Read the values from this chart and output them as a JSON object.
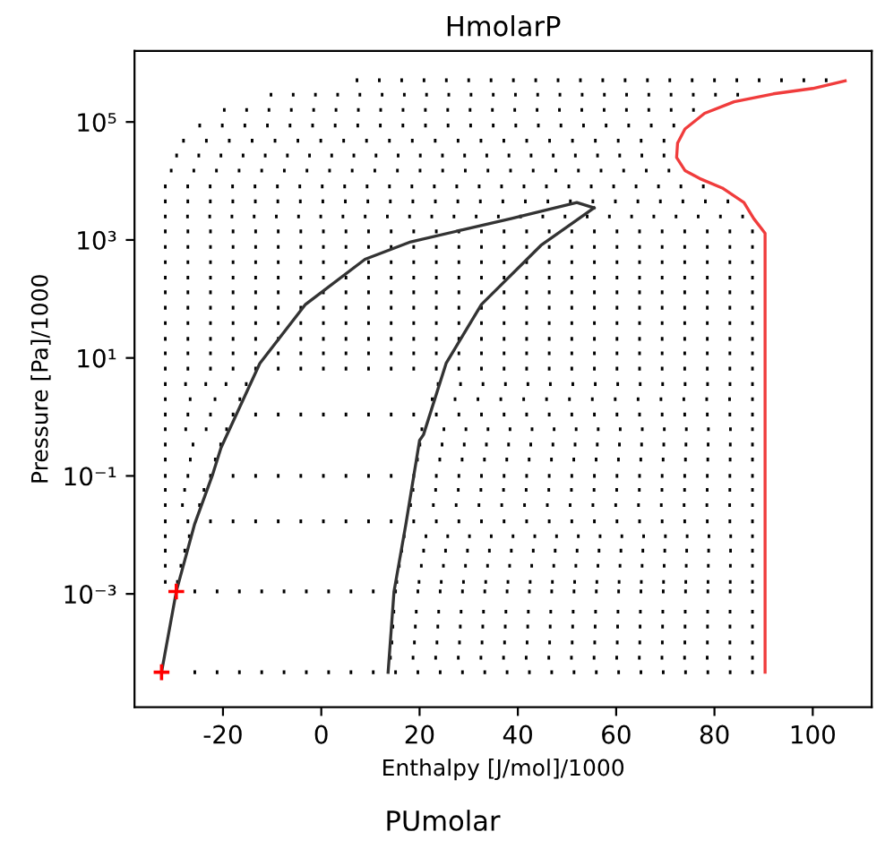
{
  "chart_data": {
    "type": "line",
    "title": "HmolarP",
    "xlabel": "Enthalpy [J/mol]/1000",
    "ylabel": "Pressure [Pa]/1000",
    "annotations": [
      "PUmolar"
    ],
    "log": "y",
    "xlim": [
      -38,
      112
    ],
    "xticks": [
      -20,
      0,
      20,
      40,
      60,
      80,
      100
    ],
    "ylim": [
      1.2e-05,
      1600000.0
    ],
    "yticks": [
      {
        "value": 0.001,
        "label": "10⁻³"
      },
      {
        "value": 0.1,
        "label": "10⁻¹"
      },
      {
        "value": 10,
        "label": "10¹"
      },
      {
        "value": 1000,
        "label": "10³"
      },
      {
        "value": 100000,
        "label": "10⁵"
      }
    ],
    "series": [
      {
        "color": "#000000",
        "line_style": "dotted",
        "x": [
          -26,
          88
        ],
        "values": [
          4.7e-05,
          4.7e-05
        ]
      },
      {
        "color": "#000000",
        "line_style": "dotted",
        "x": [
          13.8,
          88
        ],
        "values": [
          8.3e-05,
          8.3e-05
        ]
      },
      {
        "color": "#000000",
        "line_style": "dotted",
        "x": [
          14.1,
          88
        ],
        "values": [
          0.00015,
          0.00015
        ]
      },
      {
        "color": "#000000",
        "line_style": "dotted",
        "x": [
          14.3,
          88
        ],
        "values": [
          0.00028,
          0.00028
        ]
      },
      {
        "color": "#000000",
        "line_style": "dotted",
        "x": [
          14.5,
          88
        ],
        "values": [
          0.0005,
          0.0005
        ]
      },
      {
        "color": "#000000",
        "line_style": "dotted",
        "x": [
          -26,
          88
        ],
        "values": [
          0.0011,
          0.0011
        ]
      },
      {
        "color": "#000000",
        "line_style": "dotted",
        "x": [
          -32,
          -29
        ],
        "values": [
          0.0016,
          0.0016
        ]
      },
      {
        "color": "#000000",
        "line_style": "dotted",
        "x": [
          15.1,
          88
        ],
        "values": [
          0.0016,
          0.0016
        ]
      },
      {
        "color": "#000000",
        "line_style": "dotted",
        "x": [
          -32,
          -28.3
        ],
        "values": [
          0.003,
          0.003
        ]
      },
      {
        "color": "#000000",
        "line_style": "dotted",
        "x": [
          15.6,
          88
        ],
        "values": [
          0.003,
          0.003
        ]
      },
      {
        "color": "#000000",
        "line_style": "dotted",
        "x": [
          -32,
          -27.5
        ],
        "values": [
          0.0054,
          0.0054
        ]
      },
      {
        "color": "#000000",
        "line_style": "dotted",
        "x": [
          16.1,
          88
        ],
        "values": [
          0.0054,
          0.0054
        ]
      },
      {
        "color": "#000000",
        "line_style": "dotted",
        "x": [
          -32,
          -26.6
        ],
        "values": [
          0.0095,
          0.0095
        ]
      },
      {
        "color": "#000000",
        "line_style": "dotted",
        "x": [
          16.6,
          88
        ],
        "values": [
          0.0095,
          0.0095
        ]
      },
      {
        "color": "#000000",
        "line_style": "dotted",
        "x": [
          -32,
          88
        ],
        "values": [
          0.017,
          0.017
        ]
      },
      {
        "color": "#000000",
        "line_style": "dotted",
        "x": [
          -32,
          -24.5
        ],
        "values": [
          0.032,
          0.032
        ]
      },
      {
        "color": "#000000",
        "line_style": "dotted",
        "x": [
          17.9,
          88
        ],
        "values": [
          0.032,
          0.032
        ]
      },
      {
        "color": "#000000",
        "line_style": "dotted",
        "x": [
          -32,
          -23.6
        ],
        "values": [
          0.058,
          0.058
        ]
      },
      {
        "color": "#000000",
        "line_style": "dotted",
        "x": [
          18.4,
          88
        ],
        "values": [
          0.058,
          0.058
        ]
      },
      {
        "color": "#000000",
        "line_style": "dotted",
        "x": [
          -32,
          88
        ],
        "values": [
          0.1,
          0.1
        ]
      },
      {
        "color": "#000000",
        "line_style": "dotted",
        "x": [
          -32,
          -21.3
        ],
        "values": [
          0.19,
          0.19
        ]
      },
      {
        "color": "#000000",
        "line_style": "dotted",
        "x": [
          19.3,
          88
        ],
        "values": [
          0.19,
          0.19
        ]
      },
      {
        "color": "#000000",
        "line_style": "dotted",
        "x": [
          -32,
          -20.2
        ],
        "values": [
          0.34,
          0.34
        ]
      },
      {
        "color": "#000000",
        "line_style": "dotted",
        "x": [
          19.8,
          88
        ],
        "values": [
          0.34,
          0.34
        ]
      },
      {
        "color": "#000000",
        "line_style": "dotted",
        "x": [
          -32,
          -19
        ],
        "values": [
          0.62,
          0.62
        ]
      },
      {
        "color": "#000000",
        "line_style": "dotted",
        "x": [
          20.2,
          88
        ],
        "values": [
          0.62,
          0.62
        ]
      },
      {
        "color": "#000000",
        "line_style": "dotted",
        "x": [
          -32,
          88
        ],
        "values": [
          1.1,
          1.1
        ]
      },
      {
        "color": "#000000",
        "line_style": "dotted",
        "x": [
          -32,
          -16.3
        ],
        "values": [
          2.0,
          2.0
        ]
      },
      {
        "color": "#000000",
        "line_style": "dotted",
        "x": [
          22.3,
          88
        ],
        "values": [
          2.0,
          2.0
        ]
      },
      {
        "color": "#000000",
        "line_style": "dotted",
        "x": [
          -32,
          -15
        ],
        "values": [
          3.6,
          3.6
        ]
      },
      {
        "color": "#000000",
        "line_style": "dotted",
        "x": [
          23.5,
          88
        ],
        "values": [
          3.6,
          3.6
        ]
      },
      {
        "color": "#000000",
        "line_style": "dotted",
        "x": [
          -32,
          88
        ],
        "values": [
          6.6,
          6.6
        ]
      },
      {
        "color": "#000000",
        "line_style": "dotted",
        "x": [
          -32,
          88
        ],
        "values": [
          12,
          12
        ]
      },
      {
        "color": "#000000",
        "line_style": "dotted",
        "x": [
          -32,
          88
        ],
        "values": [
          21,
          21
        ]
      },
      {
        "color": "#000000",
        "line_style": "dotted",
        "x": [
          -32,
          88
        ],
        "values": [
          39,
          39
        ]
      },
      {
        "color": "#000000",
        "line_style": "dotted",
        "x": [
          -32,
          88
        ],
        "values": [
          71,
          71
        ]
      },
      {
        "color": "#000000",
        "line_style": "dotted",
        "x": [
          -32,
          88
        ],
        "values": [
          130,
          130
        ]
      },
      {
        "color": "#000000",
        "line_style": "dotted",
        "x": [
          -32,
          88
        ],
        "values": [
          230,
          230
        ]
      },
      {
        "color": "#000000",
        "line_style": "dotted",
        "x": [
          -32,
          88
        ],
        "values": [
          420,
          420
        ]
      },
      {
        "color": "#000000",
        "line_style": "dotted",
        "x": [
          -32,
          88
        ],
        "values": [
          760,
          760
        ]
      },
      {
        "color": "#000000",
        "line_style": "dotted",
        "x": [
          -32,
          88
        ],
        "values": [
          1400,
          1400
        ]
      },
      {
        "color": "#000000",
        "line_style": "dotted",
        "x": [
          -32,
          86
        ],
        "values": [
          2500,
          2500
        ]
      },
      {
        "color": "#000000",
        "line_style": "dotted",
        "x": [
          -32,
          83
        ],
        "values": [
          4500,
          4500
        ]
      },
      {
        "color": "#000000",
        "line_style": "dotted",
        "x": [
          -32,
          78
        ],
        "values": [
          8100,
          8100
        ]
      },
      {
        "color": "#000000",
        "line_style": "dotted",
        "x": [
          -30.8,
          71
        ],
        "values": [
          15000,
          15000
        ]
      },
      {
        "color": "#000000",
        "line_style": "dotted",
        "x": [
          -29.7,
          70
        ],
        "values": [
          27000,
          27000
        ]
      },
      {
        "color": "#000000",
        "line_style": "dotted",
        "x": [
          -28.3,
          70
        ],
        "values": [
          48000,
          48000
        ]
      },
      {
        "color": "#000000",
        "line_style": "dotted",
        "x": [
          -25,
          72
        ],
        "values": [
          87000,
          87000
        ]
      },
      {
        "color": "#000000",
        "line_style": "dotted",
        "x": [
          -20,
          76
        ],
        "values": [
          160000,
          160000
        ]
      },
      {
        "color": "#000000",
        "line_style": "dotted",
        "x": [
          -10.5,
          85
        ],
        "values": [
          290000,
          290000
        ]
      },
      {
        "color": "#000000",
        "line_style": "dotted",
        "x": [
          7,
          103
        ],
        "values": [
          510000,
          510000
        ]
      },
      {
        "color": "#333333",
        "line_style": "solid",
        "x": [
          -32.5,
          -29.5,
          -25.8,
          -22.2,
          -20.4,
          -12.5,
          -3.2,
          8.9,
          18.2,
          38.6,
          52,
          55.5
        ],
        "values": [
          4.7e-05,
          0.0011,
          0.015,
          0.1,
          0.3,
          8.1,
          81,
          470,
          930,
          2300,
          4300,
          3500
        ]
      },
      {
        "color": "#333333",
        "line_style": "solid",
        "x": [
          55.5,
          44.7,
          32.6,
          25.4,
          20.8,
          20,
          17.2,
          14.8,
          13.6
        ],
        "values": [
          3500,
          810,
          81,
          8.1,
          0.5,
          0.4,
          0.015,
          0.0011,
          4.7e-05
        ]
      },
      {
        "color": "#f03c3c",
        "line_style": "solid",
        "x": [
          90.3,
          90.3,
          88,
          86,
          81.6,
          77,
          74,
          72.3,
          72.5,
          74,
          78,
          84,
          92,
          100,
          106.6
        ],
        "values": [
          4.7e-05,
          1300,
          2300,
          4300,
          7600,
          11000,
          15000,
          25000,
          44000,
          76000,
          140000,
          220000,
          300000,
          370000,
          500000
        ]
      },
      {
        "type": "scatter",
        "color": "#ff0000",
        "marker": "cross",
        "x": [
          -32.5,
          -29.5
        ],
        "values": [
          4.7e-05,
          0.0011
        ]
      }
    ]
  }
}
